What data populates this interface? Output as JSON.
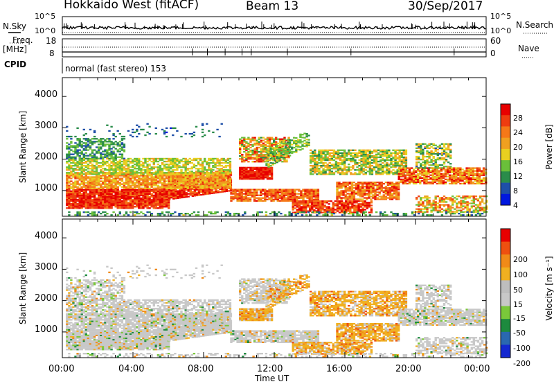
{
  "header": {
    "station": "Hokkaido West (fitACF)",
    "beam": "Beam 13",
    "date": "30/Sep/2017"
  },
  "summary_panel": {
    "nsky_label": "N.Sky",
    "nsearch_label": "N.Search",
    "noise_ticks": [
      "10^5",
      "10^0"
    ],
    "freq_label": "Freq.",
    "freq_unit": "[MHz]",
    "freq_ticks": [
      "18",
      "8"
    ],
    "nave_label": "Nave",
    "nave_ticks": [
      "60",
      "0"
    ],
    "cpid_label": "CPID",
    "cpid_text": "normal (fast stereo) 153"
  },
  "colors": {
    "power_scale": [
      "#0018e0",
      "#1e4fa8",
      "#2a8c4a",
      "#6abf3a",
      "#e8d020",
      "#f0a020",
      "#f57818",
      "#ee3c10",
      "#e80000"
    ],
    "velocity_scale": [
      "#1428d0",
      "#2a68b0",
      "#1d8a3e",
      "#7ac83a",
      "#c8c8c8",
      "#bebebe",
      "#f0b020",
      "#f08a18",
      "#ee5010",
      "#e80000"
    ]
  },
  "chart_data": [
    {
      "type": "heatmap",
      "name": "power",
      "xlabel": "",
      "ylabel": "Slant Range [km]",
      "y_ticks": [
        "1000",
        "2000",
        "3000",
        "4000"
      ],
      "ylim": [
        180,
        4600
      ],
      "colorbar_label": "Power [dB]",
      "colorbar_ticks": [
        "4",
        "8",
        "12",
        "16",
        "20",
        "24",
        "28"
      ],
      "colorbar_range": [
        0,
        30
      ]
    },
    {
      "type": "heatmap",
      "name": "velocity",
      "xlabel": "Time UT",
      "ylabel": "Slant Range [km]",
      "y_ticks": [
        "1000",
        "2000",
        "3000",
        "4000"
      ],
      "ylim": [
        180,
        4600
      ],
      "x_ticks": [
        "00:00",
        "04:00",
        "08:00",
        "12:00",
        "16:00",
        "20:00",
        "00:00"
      ],
      "xlim_hours": [
        0,
        24
      ],
      "colorbar_label": "Velocity [m s⁻¹]",
      "colorbar_ticks": [
        "200",
        "100",
        "50",
        "15",
        "-15",
        "-50",
        "-100",
        "-200"
      ],
      "colorbar_range": [
        -250,
        250
      ]
    }
  ]
}
